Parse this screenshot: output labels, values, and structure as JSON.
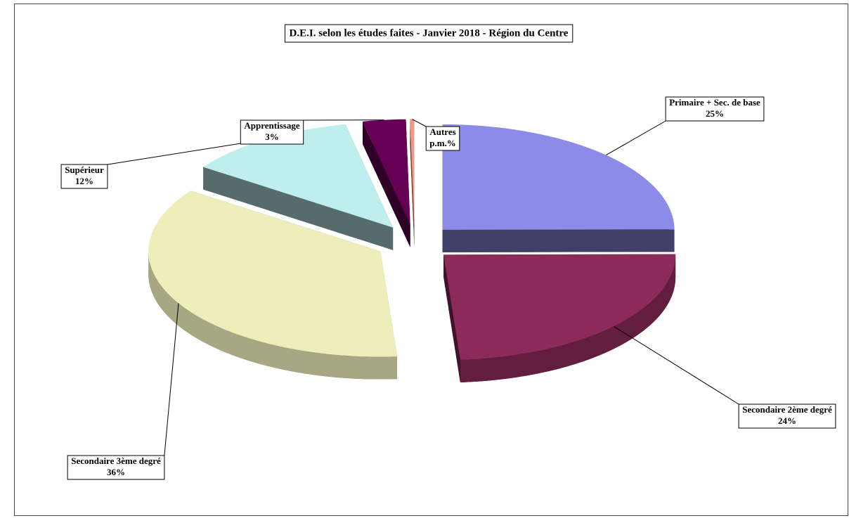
{
  "chart_data": {
    "type": "pie",
    "title": "D.E.I. selon les études faites - Janvier 2018 - Région du Centre",
    "categories": [
      "Primaire + Sec. de base",
      "Secondaire 2ème degré",
      "Secondaire 3ème degré",
      "Supérieur",
      "Apprentissage",
      "Autres"
    ],
    "values": [
      25,
      24,
      36,
      12,
      3,
      0.3
    ],
    "value_labels": [
      "25%",
      "24%",
      "36%",
      "12%",
      "3%",
      "p.m.%"
    ],
    "colors": [
      "#8c8ce8",
      "#8c2a5a",
      "#eeeebb",
      "#bfeeee",
      "#660055",
      "#ee9988"
    ]
  }
}
